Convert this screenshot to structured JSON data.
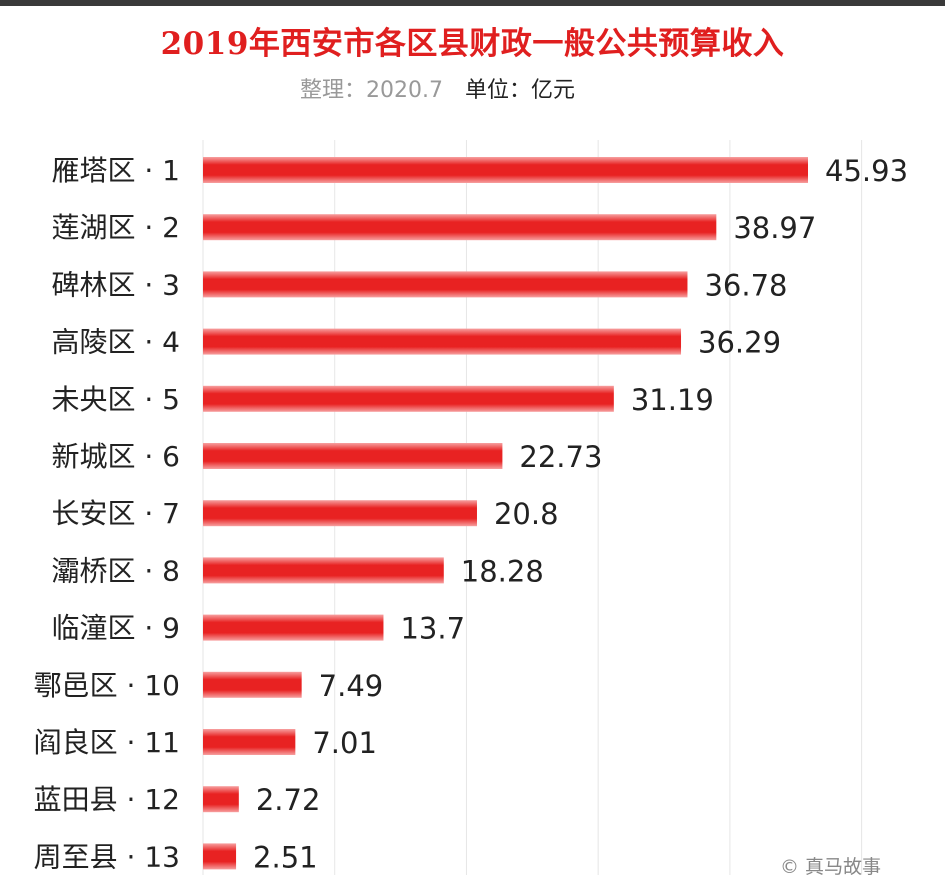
{
  "chart_data": {
    "type": "bar",
    "orientation": "horizontal",
    "title": "2019年西安市各区县财政一般公共预算收入",
    "subtitle": "整理：2020.7",
    "unit_label": "单位：亿元",
    "categories": [
      "雁塔区 · 1",
      "莲湖区 · 2",
      "碑林区 · 3",
      "高陵区 · 4",
      "未央区 · 5",
      "新城区 · 6",
      "长安区 · 7",
      "灞桥区 · 8",
      "临潼区 · 9",
      "鄠邑区 · 10",
      "阎良区 · 11",
      "蓝田县 · 12",
      "周至县 · 13"
    ],
    "values": [
      45.93,
      38.97,
      36.78,
      36.29,
      31.19,
      22.73,
      20.8,
      18.28,
      13.7,
      7.49,
      7.01,
      2.72,
      2.51
    ],
    "value_labels": [
      "45.93",
      "38.97",
      "36.78",
      "36.29",
      "31.19",
      "22.73",
      "20.8",
      "18.28",
      "13.7",
      "7.49",
      "7.01",
      "2.72",
      "2.51"
    ],
    "xlim": [
      0,
      50
    ],
    "bar_color": "#e82222",
    "grid": true,
    "legend": "none"
  },
  "watermark": "© 真马故事"
}
